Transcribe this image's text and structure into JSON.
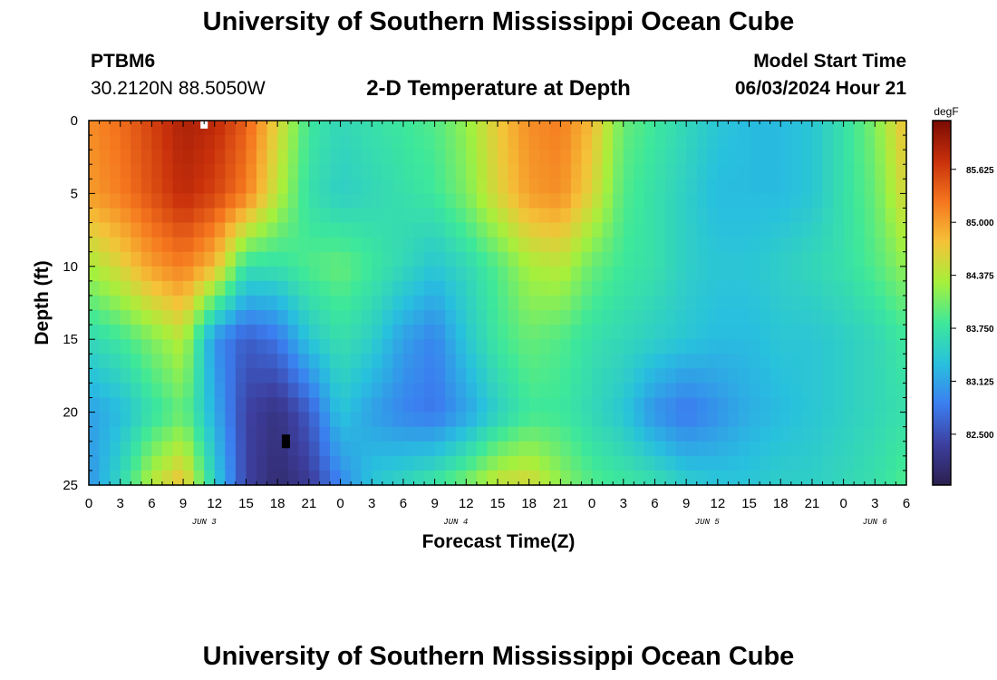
{
  "header": {
    "title": "University of Southern Mississippi Ocean Cube",
    "station_id": "PTBM6",
    "station_coords": "30.2120N  88.5050W",
    "chart_title": "2-D Temperature at Depth",
    "model_start_label": "Model Start Time",
    "model_start_value": "06/03/2024 Hour 21"
  },
  "footer": {
    "title": "University of Southern Mississippi Ocean Cube"
  },
  "chart_data": {
    "type": "heatmap",
    "title": "2-D Temperature at Depth",
    "xlabel": "Forecast Time(Z)",
    "ylabel": "Depth (ft)",
    "x_unit": "hours (Z), June 3 00Z = 0",
    "xlim": [
      0,
      78
    ],
    "ylim": [
      25,
      0
    ],
    "x_tick_labels": [
      "0",
      "3",
      "6",
      "9",
      "12",
      "15",
      "18",
      "21",
      "0",
      "3",
      "6",
      "9",
      "12",
      "15",
      "18",
      "21",
      "0",
      "3",
      "6",
      "9",
      "12",
      "15",
      "18",
      "21",
      "0",
      "3",
      "6"
    ],
    "day_labels": [
      {
        "label": "JUN 3",
        "x": 11
      },
      {
        "label": "JUN 4",
        "x": 35
      },
      {
        "label": "JUN 5",
        "x": 59
      },
      {
        "label": "JUN 6",
        "x": 75
      }
    ],
    "y_ticks": [
      0,
      5,
      10,
      15,
      20,
      25
    ],
    "colorbar": {
      "unit": "degF",
      "min": 81.9,
      "max": 86.2,
      "tick_values": [
        82.5,
        83.125,
        83.75,
        84.375,
        85.0,
        85.625
      ],
      "tick_labels": [
        "82.500",
        "83.125",
        "83.750",
        "84.375",
        "85.000",
        "85.625"
      ],
      "colors": [
        "#2b1f4e",
        "#3d3f9f",
        "#3b7ef0",
        "#28c0de",
        "#3ee89a",
        "#a6f03c",
        "#f5c238",
        "#f5761e",
        "#c8300b",
        "#7a0b04"
      ]
    },
    "temperature_grid": {
      "depths_ft": [
        0,
        5,
        10,
        15,
        20,
        25
      ],
      "hours": [
        0,
        3,
        6,
        9,
        12,
        15,
        18,
        21,
        24,
        27,
        30,
        33,
        36,
        39,
        42,
        45,
        48,
        51,
        54,
        57,
        60,
        63,
        66,
        69,
        72,
        75,
        78
      ],
      "values": [
        [
          85.1,
          85.3,
          85.6,
          85.9,
          85.8,
          85.4,
          84.6,
          83.8,
          83.6,
          83.7,
          83.8,
          83.9,
          84.2,
          84.7,
          85.1,
          85.2,
          84.8,
          84.0,
          83.8,
          83.6,
          83.4,
          83.3,
          83.3,
          83.4,
          83.7,
          84.1,
          84.8
        ],
        [
          85.0,
          85.2,
          85.5,
          85.8,
          85.6,
          85.2,
          84.4,
          83.7,
          83.5,
          83.6,
          83.7,
          83.8,
          84.1,
          84.6,
          85.0,
          85.1,
          84.6,
          83.9,
          83.7,
          83.5,
          83.3,
          83.3,
          83.3,
          83.4,
          83.7,
          84.0,
          84.6
        ],
        [
          84.3,
          84.6,
          85.0,
          85.2,
          84.8,
          83.7,
          83.7,
          83.9,
          84.0,
          83.8,
          83.6,
          83.4,
          83.6,
          83.9,
          84.3,
          84.4,
          84.0,
          83.8,
          83.7,
          83.5,
          83.4,
          83.4,
          83.5,
          83.6,
          83.7,
          83.9,
          84.2
        ],
        [
          83.6,
          83.8,
          84.1,
          84.4,
          83.0,
          82.6,
          82.8,
          83.4,
          83.7,
          83.5,
          83.1,
          82.9,
          83.4,
          83.8,
          84.0,
          83.9,
          83.7,
          83.6,
          83.5,
          83.4,
          83.3,
          83.3,
          83.4,
          83.4,
          83.5,
          83.6,
          83.8
        ],
        [
          83.1,
          83.3,
          83.7,
          84.0,
          83.2,
          82.4,
          82.2,
          82.6,
          83.4,
          83.1,
          82.9,
          82.8,
          83.1,
          83.5,
          83.8,
          83.8,
          83.6,
          83.4,
          83.0,
          82.8,
          83.0,
          83.2,
          83.3,
          83.4,
          83.5,
          83.6,
          83.7
        ],
        [
          83.0,
          83.6,
          84.4,
          84.8,
          83.5,
          82.4,
          82.1,
          82.3,
          82.9,
          83.4,
          83.6,
          83.8,
          84.1,
          84.5,
          84.6,
          84.2,
          83.9,
          83.8,
          83.7,
          83.5,
          83.4,
          83.4,
          83.5,
          83.5,
          83.6,
          83.7,
          83.9
        ]
      ]
    },
    "markers": [
      {
        "x": 11,
        "depth": 0.3,
        "color": "#ffffff"
      },
      {
        "x": 18.8,
        "depth": 22.0,
        "color": "#000000"
      }
    ]
  }
}
